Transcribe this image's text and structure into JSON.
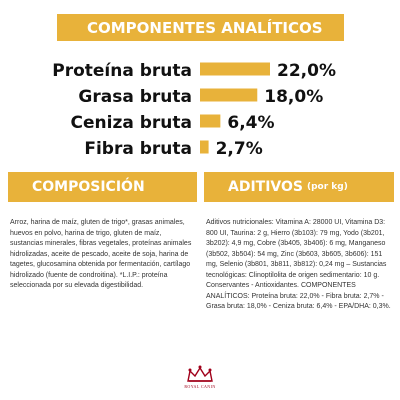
{
  "headings": {
    "analytic": "COMPONENTES ANALÍTICOS",
    "composition": "COMPOSICIÓN",
    "additives": "ADITIVOS",
    "additives_unit": "(por kg)"
  },
  "chart_data": {
    "type": "bar",
    "categories": [
      "Proteína bruta",
      "Grasa bruta",
      "Ceniza bruta",
      "Fibra bruta"
    ],
    "values": [
      22.0,
      18.0,
      6.4,
      2.7
    ],
    "value_labels": [
      "22,0%",
      "18,0%",
      "6,4%",
      "2,7%"
    ],
    "unit": "%",
    "bar_color": "#e8b23a"
  },
  "composition_text": "Arroz, harina de maíz, gluten de trigo*, grasas animales, huevos en polvo, harina de trigo, gluten de maíz, sustancias minerales, fibras vegetales, proteínas animales hidrolizadas, aceite de pescado, aceite de soja, harina de tagetes, glucosamina obtenida por fermentación, cartílago hidrolizado (fuente de condroitina). *L.I.P.: proteína seleccionada por su elevada digestibilidad.",
  "additives_text": "Aditivos nutricionales: Vitamina A: 28000 UI, Vitamina D3: 800 UI, Taurina: 2 g, Hierro (3b103): 79 mg, Yodo (3b201, 3b202): 4,9 mg, Cobre (3b405, 3b406): 6 mg, Manganeso (3b502, 3b504): 54 mg, Zinc (3b603, 3b605, 3b606): 151 mg, Selenio (3b801, 3b811, 3b812): 0,24 mg – Sustancias tecnológicas: Clinoptilolita de origen sedimentario: 10 g. Conservantes - Antioxidantes. COMPONENTES ANALÍTICOS: Proteína bruta: 22,0% - Fibra bruta: 2,7% - Grasa bruta: 18,0% - Ceniza bruta: 6,4% - EPA/DHA: 0,3%.",
  "logo": {
    "text": "ROYAL CANIN",
    "color": "#a0001a"
  }
}
